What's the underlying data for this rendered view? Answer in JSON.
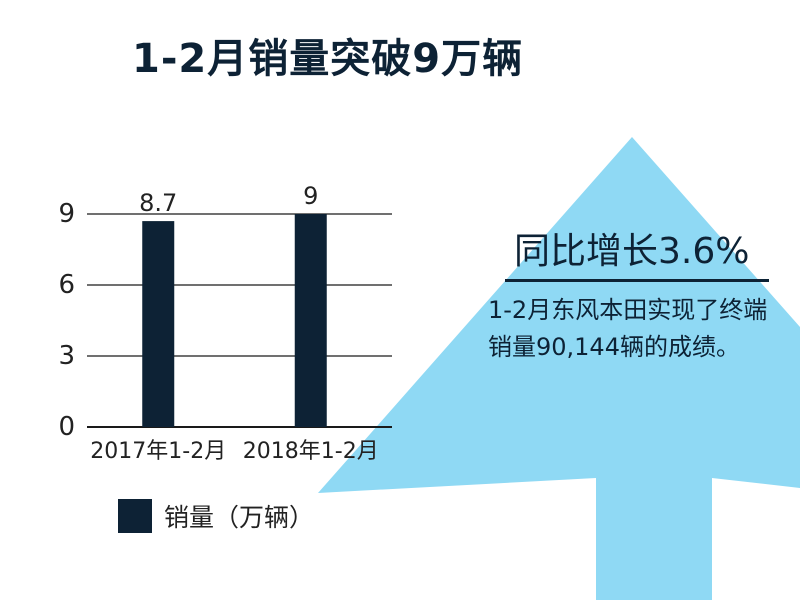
{
  "title": "1-2月销量突破9万辆",
  "headline": "同比增长3.6%",
  "description": "1-2月东风本田实现了终端销量90,144辆的成绩。",
  "colors": {
    "bar": "#0d2235",
    "arrow": "#8fd9f4",
    "text": "#0d2235"
  },
  "chart_data": {
    "type": "bar",
    "categories": [
      "2017年1-2月",
      "2018年1-2月"
    ],
    "series": [
      {
        "name": "销量（万辆）",
        "values": [
          8.7,
          9
        ]
      }
    ],
    "data_labels": [
      "8.7",
      "9"
    ],
    "yticks": [
      "0",
      "3",
      "6",
      "9"
    ],
    "ylim": [
      0,
      9
    ],
    "grid": true,
    "legend_position": "bottom-left"
  }
}
